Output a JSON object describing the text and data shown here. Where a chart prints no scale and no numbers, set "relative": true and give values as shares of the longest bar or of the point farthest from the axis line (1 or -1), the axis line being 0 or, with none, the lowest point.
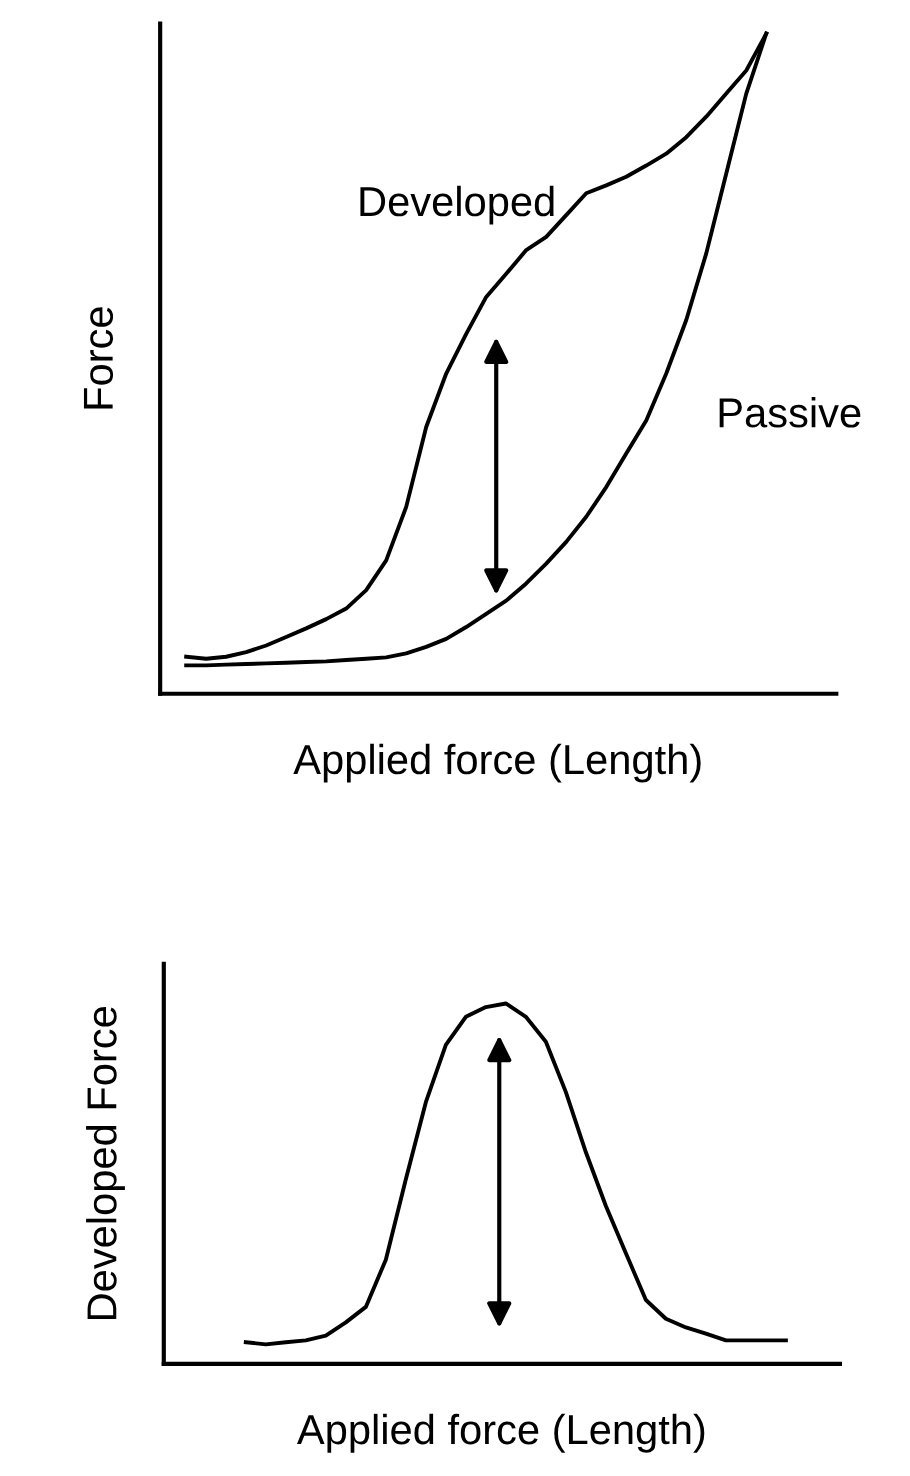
{
  "chart_data": [
    {
      "type": "line",
      "relative": true,
      "ylabel": "Force",
      "xlabel": "Applied force (Length)",
      "categories": [
        null,
        null,
        null,
        null,
        null,
        null,
        null,
        null,
        null,
        null,
        null,
        null,
        null,
        null,
        null,
        null,
        null,
        null,
        null,
        null,
        null,
        null,
        null,
        null,
        null,
        null,
        null,
        null,
        null,
        null
      ],
      "series": [
        {
          "name": "Developed",
          "color": "#000000",
          "values": [
            0.056,
            0.053,
            0.056,
            0.063,
            0.073,
            0.086,
            0.099,
            0.113,
            0.129,
            0.157,
            0.202,
            0.283,
            0.404,
            0.485,
            0.545,
            0.601,
            0.636,
            0.672,
            0.692,
            0.725,
            0.758,
            0.77,
            0.783,
            0.8,
            0.818,
            0.843,
            0.874,
            0.909,
            0.944,
            1
          ]
        },
        {
          "name": "Passive",
          "color": "#000000",
          "values": [
            0.043,
            0.043,
            0.044,
            0.045,
            0.046,
            0.047,
            0.048,
            0.049,
            0.051,
            0.053,
            0.055,
            0.061,
            0.071,
            0.083,
            0.101,
            0.121,
            0.141,
            0.167,
            0.197,
            0.23,
            0.268,
            0.313,
            0.364,
            0.414,
            0.485,
            0.566,
            0.667,
            0.788,
            0.909,
            1
          ]
        }
      ]
    },
    {
      "type": "line",
      "relative": true,
      "ylabel": "Developed Force",
      "xlabel": "Applied force (Length)",
      "categories": [
        null,
        null,
        null,
        null,
        null,
        null,
        null,
        null,
        null,
        null,
        null,
        null,
        null,
        null,
        null,
        null,
        null,
        null,
        null,
        null,
        null,
        null,
        null,
        null,
        null,
        null,
        null,
        null
      ],
      "series": [
        {
          "color": "#000000",
          "values": [
            0.06,
            0.054,
            0.06,
            0.065,
            0.078,
            0.115,
            0.158,
            0.289,
            0.512,
            0.726,
            0.885,
            0.963,
            0.99,
            1,
            0.963,
            0.894,
            0.754,
            0.587,
            0.438,
            0.307,
            0.177,
            0.125,
            0.101,
            0.084,
            0.065,
            0.065,
            0.065,
            0.065
          ]
        }
      ]
    }
  ]
}
